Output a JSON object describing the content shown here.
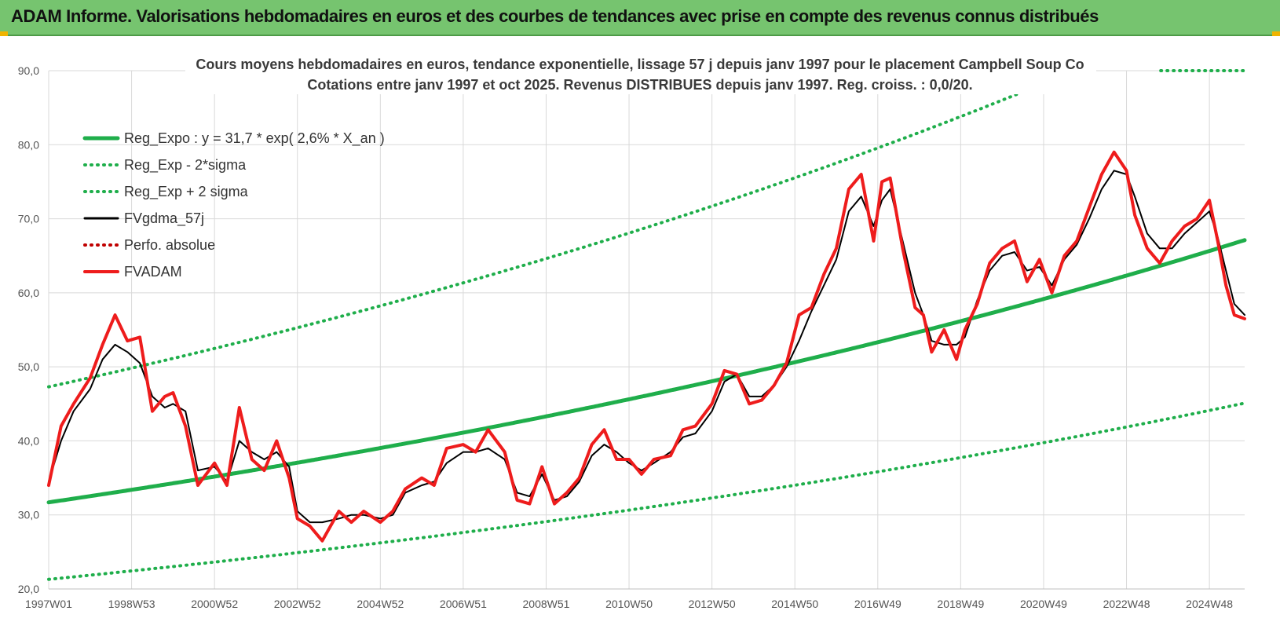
{
  "header": {
    "title": "ADAM Informe. Valorisations hebdomadaires en euros et des courbes de tendances avec prise en compte des revenus connus distribués"
  },
  "colors": {
    "banner": "#76c46f",
    "reg_expo": "#1fae4b",
    "sigma": "#1fae4b",
    "fvgdma": "#000000",
    "perfo": "#c00000",
    "fvadam": "#ee1c1c",
    "grid": "#d9d9d9"
  },
  "chart_data": {
    "type": "line",
    "title": [
      "Cours moyens hebdomadaires en euros, tendance exponentielle, lissage 57 j depuis janv 1997 pour le placement Campbell Soup Co",
      "Cotations entre janv 1997 et oct 2025. Revenus DISTRIBUES depuis janv 1997. Reg. croiss. : 0,0/20."
    ],
    "xlabel": "",
    "ylabel": "",
    "ylim": [
      20,
      90
    ],
    "yticks": [
      "20,0",
      "30,0",
      "40,0",
      "50,0",
      "60,0",
      "70,0",
      "80,0",
      "90,0"
    ],
    "xlim": [
      1997.0,
      2025.85
    ],
    "xticks": [
      {
        "label": "1997W01",
        "x": 1997.0
      },
      {
        "label": "1998W53",
        "x": 1999.0
      },
      {
        "label": "2000W52",
        "x": 2001.0
      },
      {
        "label": "2002W52",
        "x": 2003.0
      },
      {
        "label": "2004W52",
        "x": 2005.0
      },
      {
        "label": "2006W51",
        "x": 2007.0
      },
      {
        "label": "2008W51",
        "x": 2009.0
      },
      {
        "label": "2010W50",
        "x": 2011.0
      },
      {
        "label": "2012W50",
        "x": 2013.0
      },
      {
        "label": "2014W50",
        "x": 2015.0
      },
      {
        "label": "2016W49",
        "x": 2017.0
      },
      {
        "label": "2018W49",
        "x": 2019.0
      },
      {
        "label": "2020W49",
        "x": 2021.0
      },
      {
        "label": "2022W48",
        "x": 2023.0
      },
      {
        "label": "2024W48",
        "x": 2025.0
      }
    ],
    "grid": true,
    "legend_position": "top-left",
    "series": [
      {
        "name": "Reg_Expo : y = 31,7 * exp( 2,6% *  X_an )",
        "style": "solid-thick",
        "color": "#1fae4b",
        "model": {
          "a": 31.7,
          "rate": 0.026,
          "x0": 1997.0
        }
      },
      {
        "name": "Reg_Exp - 2*sigma",
        "style": "dotted",
        "color": "#1fae4b",
        "model": {
          "a": 21.3,
          "rate": 0.026,
          "x0": 1997.0
        }
      },
      {
        "name": "Reg_Exp + 2 sigma",
        "style": "dotted",
        "color": "#1fae4b",
        "model": {
          "a": 47.3,
          "rate": 0.026,
          "x0": 1997.0
        }
      },
      {
        "name": "FVgdma_57j",
        "style": "solid",
        "color": "#000000",
        "x": [
          1997.0,
          1997.3,
          1997.6,
          1998.0,
          1998.3,
          1998.6,
          1998.9,
          1999.2,
          1999.5,
          1999.8,
          2000.0,
          2000.3,
          2000.6,
          2001.0,
          2001.3,
          2001.6,
          2001.9,
          2002.2,
          2002.5,
          2002.8,
          2003.0,
          2003.3,
          2003.6,
          2004.0,
          2004.3,
          2004.6,
          2005.0,
          2005.3,
          2005.6,
          2006.0,
          2006.3,
          2006.6,
          2007.0,
          2007.3,
          2007.6,
          2008.0,
          2008.3,
          2008.6,
          2008.9,
          2009.2,
          2009.5,
          2009.8,
          2010.1,
          2010.4,
          2010.7,
          2011.0,
          2011.3,
          2011.6,
          2012.0,
          2012.3,
          2012.6,
          2013.0,
          2013.3,
          2013.6,
          2013.9,
          2014.2,
          2014.5,
          2014.8,
          2015.1,
          2015.4,
          2015.7,
          2016.0,
          2016.3,
          2016.6,
          2016.9,
          2017.1,
          2017.3,
          2017.6,
          2017.9,
          2018.1,
          2018.3,
          2018.6,
          2018.9,
          2019.1,
          2019.4,
          2019.7,
          2020.0,
          2020.3,
          2020.6,
          2020.9,
          2021.2,
          2021.5,
          2021.8,
          2022.1,
          2022.4,
          2022.7,
          2023.0,
          2023.2,
          2023.5,
          2023.8,
          2024.1,
          2024.4,
          2024.7,
          2025.0,
          2025.2,
          2025.4,
          2025.6,
          2025.85
        ],
        "values": [
          34.5,
          40.0,
          44.0,
          47.0,
          51.0,
          53.0,
          52.0,
          50.5,
          46.0,
          44.5,
          45.0,
          44.0,
          36.0,
          36.5,
          34.5,
          40.0,
          38.5,
          37.5,
          38.5,
          36.5,
          30.5,
          29.0,
          29.0,
          29.5,
          30.0,
          30.0,
          29.5,
          30.0,
          33.0,
          34.0,
          34.5,
          37.0,
          38.5,
          38.5,
          39.0,
          37.5,
          33.0,
          32.5,
          35.5,
          32.0,
          32.5,
          34.5,
          38.0,
          39.5,
          38.5,
          37.0,
          36.0,
          37.0,
          38.5,
          40.5,
          41.0,
          44.0,
          48.0,
          49.0,
          46.0,
          46.0,
          47.5,
          50.0,
          53.5,
          57.5,
          61.0,
          64.5,
          71.0,
          73.0,
          69.0,
          72.5,
          74.0,
          67.0,
          60.0,
          57.0,
          53.5,
          53.0,
          53.0,
          54.0,
          59.0,
          63.0,
          65.0,
          65.5,
          63.0,
          63.5,
          61.0,
          64.5,
          66.5,
          70.0,
          74.0,
          76.5,
          76.0,
          73.0,
          68.0,
          66.0,
          66.0,
          68.0,
          69.5,
          71.0,
          67.5,
          63.0,
          58.5,
          57.0
        ]
      },
      {
        "name": "Perfo. absolue",
        "style": "dotted",
        "color": "#c00000",
        "values": []
      },
      {
        "name": "FVADAM",
        "style": "solid-thick",
        "color": "#ee1c1c",
        "x": [
          1997.0,
          1997.3,
          1997.6,
          1998.0,
          1998.3,
          1998.6,
          1998.9,
          1999.2,
          1999.5,
          1999.8,
          2000.0,
          2000.3,
          2000.6,
          2001.0,
          2001.3,
          2001.6,
          2001.9,
          2002.2,
          2002.5,
          2002.8,
          2003.0,
          2003.3,
          2003.6,
          2004.0,
          2004.3,
          2004.6,
          2005.0,
          2005.3,
          2005.6,
          2006.0,
          2006.3,
          2006.6,
          2007.0,
          2007.3,
          2007.6,
          2008.0,
          2008.3,
          2008.6,
          2008.9,
          2009.2,
          2009.5,
          2009.8,
          2010.1,
          2010.4,
          2010.7,
          2011.0,
          2011.3,
          2011.6,
          2012.0,
          2012.3,
          2012.6,
          2013.0,
          2013.3,
          2013.6,
          2013.9,
          2014.2,
          2014.5,
          2014.8,
          2015.1,
          2015.4,
          2015.7,
          2016.0,
          2016.3,
          2016.6,
          2016.9,
          2017.1,
          2017.3,
          2017.6,
          2017.9,
          2018.1,
          2018.3,
          2018.6,
          2018.9,
          2019.1,
          2019.4,
          2019.7,
          2020.0,
          2020.3,
          2020.6,
          2020.9,
          2021.2,
          2021.5,
          2021.8,
          2022.1,
          2022.4,
          2022.7,
          2023.0,
          2023.2,
          2023.5,
          2023.8,
          2024.1,
          2024.4,
          2024.7,
          2025.0,
          2025.2,
          2025.4,
          2025.6,
          2025.85
        ],
        "values": [
          34.0,
          42.0,
          45.0,
          48.5,
          53.0,
          57.0,
          53.5,
          54.0,
          44.0,
          46.0,
          46.5,
          42.0,
          34.0,
          37.0,
          34.0,
          44.5,
          37.5,
          36.0,
          40.0,
          35.0,
          29.5,
          28.5,
          26.5,
          30.5,
          29.0,
          30.5,
          29.0,
          30.5,
          33.5,
          35.0,
          34.0,
          39.0,
          39.5,
          38.5,
          41.5,
          38.5,
          32.0,
          31.5,
          36.5,
          31.5,
          33.0,
          35.0,
          39.5,
          41.5,
          37.5,
          37.5,
          35.5,
          37.5,
          38.0,
          41.5,
          42.0,
          45.0,
          49.5,
          49.0,
          45.0,
          45.5,
          47.5,
          50.5,
          57.0,
          58.0,
          62.5,
          66.0,
          74.0,
          76.0,
          67.0,
          75.0,
          75.5,
          66.0,
          58.0,
          57.0,
          52.0,
          55.0,
          51.0,
          55.0,
          58.5,
          64.0,
          66.0,
          67.0,
          61.5,
          64.5,
          60.0,
          65.0,
          67.0,
          71.5,
          76.0,
          79.0,
          76.5,
          70.5,
          66.0,
          64.0,
          67.0,
          69.0,
          70.0,
          72.5,
          67.0,
          61.0,
          57.0,
          56.5
        ]
      }
    ]
  }
}
